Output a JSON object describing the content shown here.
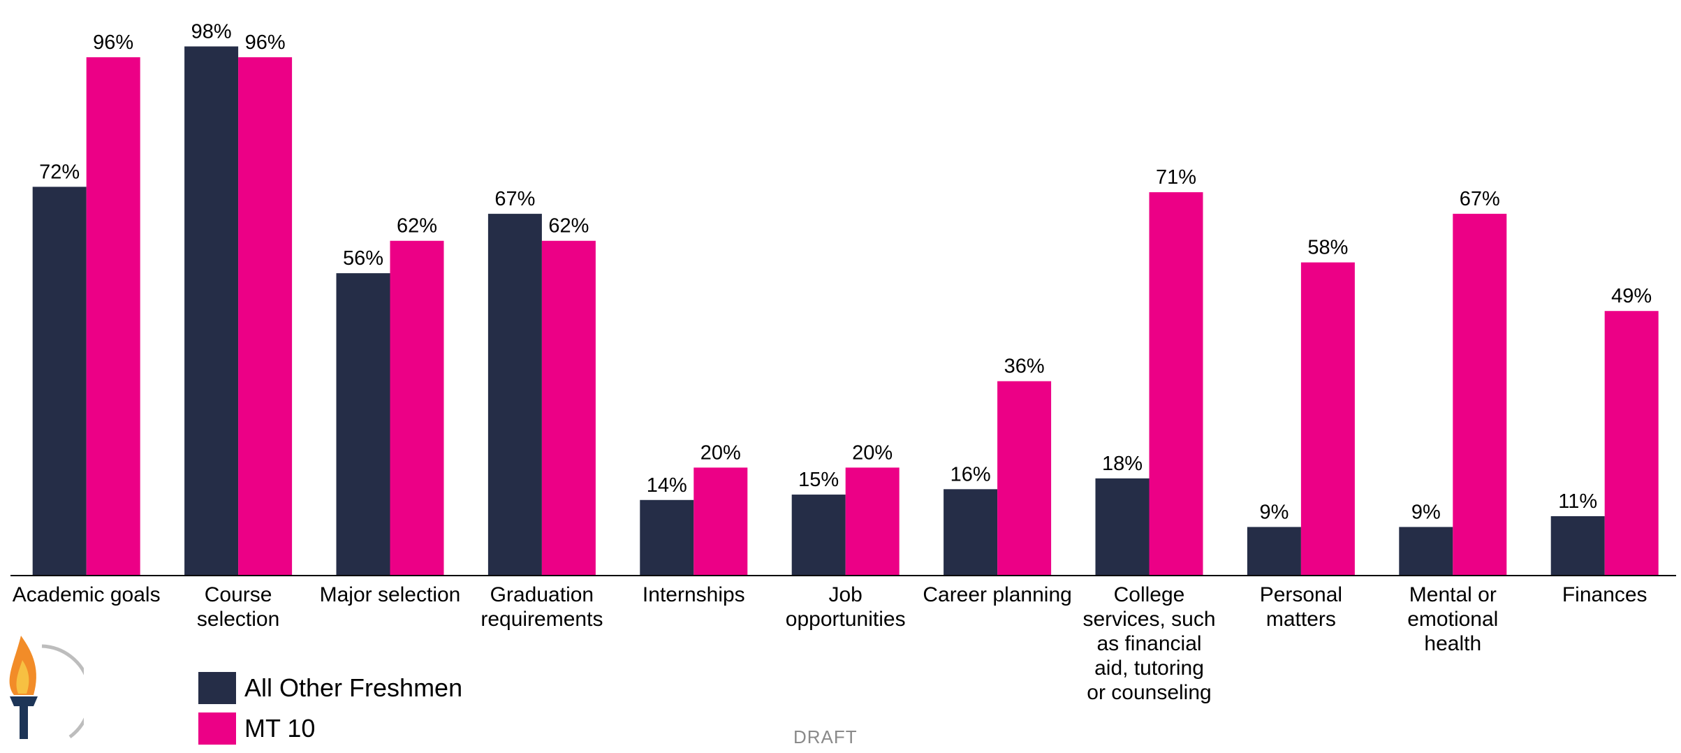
{
  "chart_data": {
    "type": "bar",
    "categories": [
      [
        "Academic goals"
      ],
      [
        "Course",
        "selection"
      ],
      [
        "Major selection"
      ],
      [
        "Graduation",
        "requirements"
      ],
      [
        "Internships"
      ],
      [
        "Job",
        "opportunities"
      ],
      [
        "Career planning"
      ],
      [
        "College",
        "services, such",
        "as financial",
        "aid, tutoring",
        "or counseling"
      ],
      [
        "Personal",
        "matters"
      ],
      [
        "Mental or",
        "emotional",
        "health"
      ],
      [
        "Finances"
      ]
    ],
    "series": [
      {
        "name": "All Other Freshmen",
        "color": "#252d47",
        "values": [
          72,
          98,
          56,
          67,
          14,
          15,
          16,
          18,
          9,
          9,
          11
        ],
        "labels": [
          "72%",
          "98%",
          "56%",
          "67%",
          "14%",
          "15%",
          "16%",
          "18%",
          "9%",
          "9%",
          "11%"
        ]
      },
      {
        "name": "MT 10",
        "color": "#ec0086",
        "values": [
          96,
          96,
          62,
          62,
          20,
          20,
          36,
          71,
          58,
          67,
          49
        ],
        "labels": [
          "96%",
          "96%",
          "62%",
          "62%",
          "20%",
          "20%",
          "36%",
          "71%",
          "58%",
          "67%",
          "49%"
        ]
      }
    ],
    "ylim": [
      0,
      100
    ],
    "grid": false,
    "legend_position": "bottom-left"
  },
  "legend": {
    "items": [
      {
        "label": "All Other Freshmen",
        "color": "#252d47"
      },
      {
        "label": "MT 10",
        "color": "#ec0086"
      }
    ]
  },
  "footer": {
    "draft_text": "DRAFT",
    "logo_icon": "torch-icon"
  }
}
